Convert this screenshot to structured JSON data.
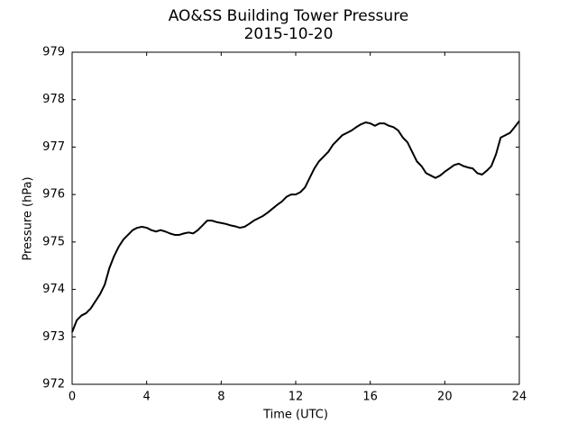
{
  "chart_data": {
    "type": "line",
    "title": "AO&SS Building Tower Pressure",
    "subtitle": "2015-10-20",
    "xlabel": "Time (UTC)",
    "ylabel": "Pressure (hPa)",
    "xlim": [
      0,
      24
    ],
    "xticks": [
      0,
      4,
      8,
      12,
      16,
      20,
      24
    ],
    "ylim": [
      972,
      979
    ],
    "yticks": [
      972,
      973,
      974,
      975,
      976,
      977,
      978,
      979
    ],
    "grid": false,
    "x": [
      0,
      0.25,
      0.5,
      0.75,
      1,
      1.25,
      1.5,
      1.75,
      2,
      2.25,
      2.5,
      2.75,
      3,
      3.25,
      3.5,
      3.75,
      4,
      4.25,
      4.5,
      4.75,
      5,
      5.25,
      5.5,
      5.75,
      6,
      6.25,
      6.5,
      6.75,
      7,
      7.25,
      7.5,
      7.75,
      8,
      8.25,
      8.5,
      8.75,
      9,
      9.25,
      9.5,
      9.75,
      10,
      10.25,
      10.5,
      10.75,
      11,
      11.25,
      11.5,
      11.75,
      12,
      12.25,
      12.5,
      12.75,
      13,
      13.25,
      13.5,
      13.75,
      14,
      14.25,
      14.5,
      14.75,
      15,
      15.25,
      15.5,
      15.75,
      16,
      16.25,
      16.5,
      16.75,
      17,
      17.25,
      17.5,
      17.75,
      18,
      18.25,
      18.5,
      18.75,
      19,
      19.25,
      19.5,
      19.75,
      20,
      20.25,
      20.5,
      20.75,
      21,
      21.25,
      21.5,
      21.75,
      22,
      22.25,
      22.5,
      22.75,
      23,
      23.25,
      23.5,
      23.75,
      24
    ],
    "series": [
      {
        "name": "Pressure",
        "color": "#000000",
        "values": [
          973.1,
          973.35,
          973.45,
          973.5,
          973.6,
          973.75,
          973.9,
          974.1,
          974.45,
          974.7,
          974.9,
          975.05,
          975.15,
          975.25,
          975.3,
          975.32,
          975.3,
          975.25,
          975.22,
          975.25,
          975.22,
          975.18,
          975.15,
          975.15,
          975.18,
          975.2,
          975.18,
          975.25,
          975.35,
          975.45,
          975.45,
          975.42,
          975.4,
          975.38,
          975.35,
          975.33,
          975.3,
          975.32,
          975.38,
          975.45,
          975.5,
          975.55,
          975.62,
          975.7,
          975.78,
          975.85,
          975.95,
          976.0,
          976.0,
          976.05,
          976.15,
          976.35,
          976.55,
          976.7,
          976.8,
          976.9,
          977.05,
          977.15,
          977.25,
          977.3,
          977.35,
          977.42,
          977.48,
          977.52,
          977.5,
          977.45,
          977.5,
          977.5,
          977.45,
          977.42,
          977.35,
          977.2,
          977.1,
          976.9,
          976.7,
          976.6,
          976.45,
          976.4,
          976.35,
          976.4,
          976.48,
          976.55,
          976.62,
          976.65,
          976.6,
          976.57,
          976.55,
          976.45,
          976.42,
          976.5,
          976.6,
          976.85,
          977.2,
          977.25,
          977.3,
          977.42,
          977.55
        ]
      }
    ]
  }
}
